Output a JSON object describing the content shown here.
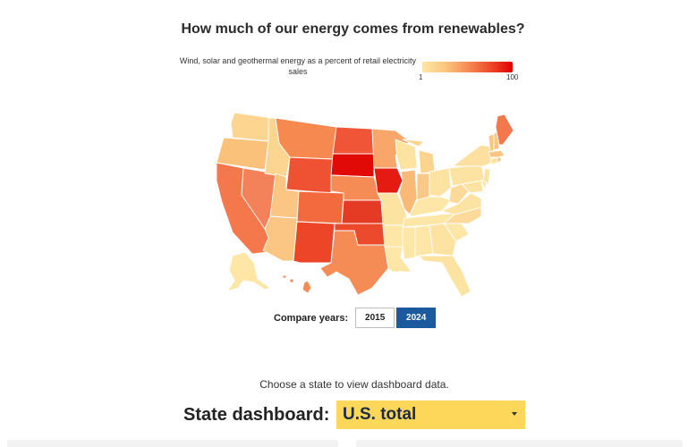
{
  "title": "How much of our energy comes from renewables?",
  "legend": {
    "label": "Wind, solar and geothermal energy as a percent of retail electricity sales",
    "min": "1",
    "max": "100",
    "color_low": "#fde6a6",
    "color_high": "#e00000"
  },
  "map": {
    "colors": {
      "WA": "#fcd591",
      "OR": "#fac17a",
      "CA": "#f4784c",
      "NV": "#f3815a",
      "ID": "#fcd591",
      "MT": "#f5894f",
      "WY": "#ef5233",
      "UT": "#fbc583",
      "AZ": "#fbc583",
      "CO": "#f26a3d",
      "NM": "#ec4527",
      "ND": "#ef5536",
      "SD": "#e10a06",
      "NE": "#f58c55",
      "KS": "#e53a23",
      "OK": "#eb4a2d",
      "TX": "#f58c55",
      "MN": "#f8a669",
      "IA": "#e51b12",
      "MO": "#fde3a2",
      "AR": "#fde6a6",
      "LA": "#fde6a6",
      "WI": "#fde3a2",
      "IL": "#faba77",
      "MI": "#fcd48e",
      "IN": "#fbc987",
      "OH": "#fde3a2",
      "KY": "#fde6a6",
      "TN": "#fde6a6",
      "MS": "#fde6a6",
      "AL": "#fde6a6",
      "GA": "#fde3a2",
      "FL": "#fde3a2",
      "SC": "#fde6a6",
      "NC": "#fdd99a",
      "VA": "#fde3a2",
      "WV": "#fdd99a",
      "PA": "#fde3a2",
      "NY": "#fde0a0",
      "VT": "#fbc583",
      "NH": "#fbc583",
      "ME": "#f4784c",
      "MA": "#fbc583",
      "RI": "#fbc583",
      "CT": "#fde3a2",
      "NJ": "#fde3a2",
      "DE": "#fde3a2",
      "MD": "#fde3a2",
      "AK": "#fde6a6",
      "HI": "#f68d55"
    }
  },
  "compare": {
    "label": "Compare years:",
    "years": [
      {
        "label": "2015",
        "active": false
      },
      {
        "label": "2024",
        "active": true
      }
    ],
    "active_color": "#1c5aa0"
  },
  "choose_text": "Choose a state to view dashboard data.",
  "dashboard": {
    "label": "State dashboard:",
    "selected": "U.S. total",
    "select_color": "#fcd75a"
  }
}
